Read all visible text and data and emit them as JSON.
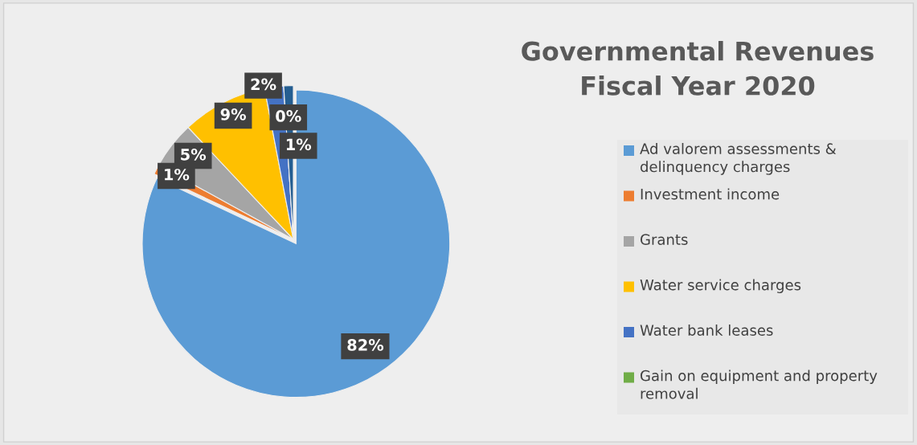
{
  "chart_data": {
    "type": "pie",
    "title": "Governmental Revenues Fiscal Year 2020",
    "categories": [
      "Ad valorem assessments & delinquency charges",
      "Investment income",
      "Grants",
      "Water service charges",
      "Water bank leases",
      "Gain on equipment and property removal",
      null
    ],
    "values": [
      82,
      1,
      5,
      9,
      2,
      0,
      1
    ],
    "colors": [
      "#5b9bd5",
      "#ed7d31",
      "#a5a5a5",
      "#ffc000",
      "#4472c4",
      "#70ad47",
      "#255e91"
    ],
    "value_labels": [
      "82%",
      "1%",
      "5%",
      "9%",
      "2%",
      "0%",
      "1%"
    ],
    "legend": "right"
  }
}
